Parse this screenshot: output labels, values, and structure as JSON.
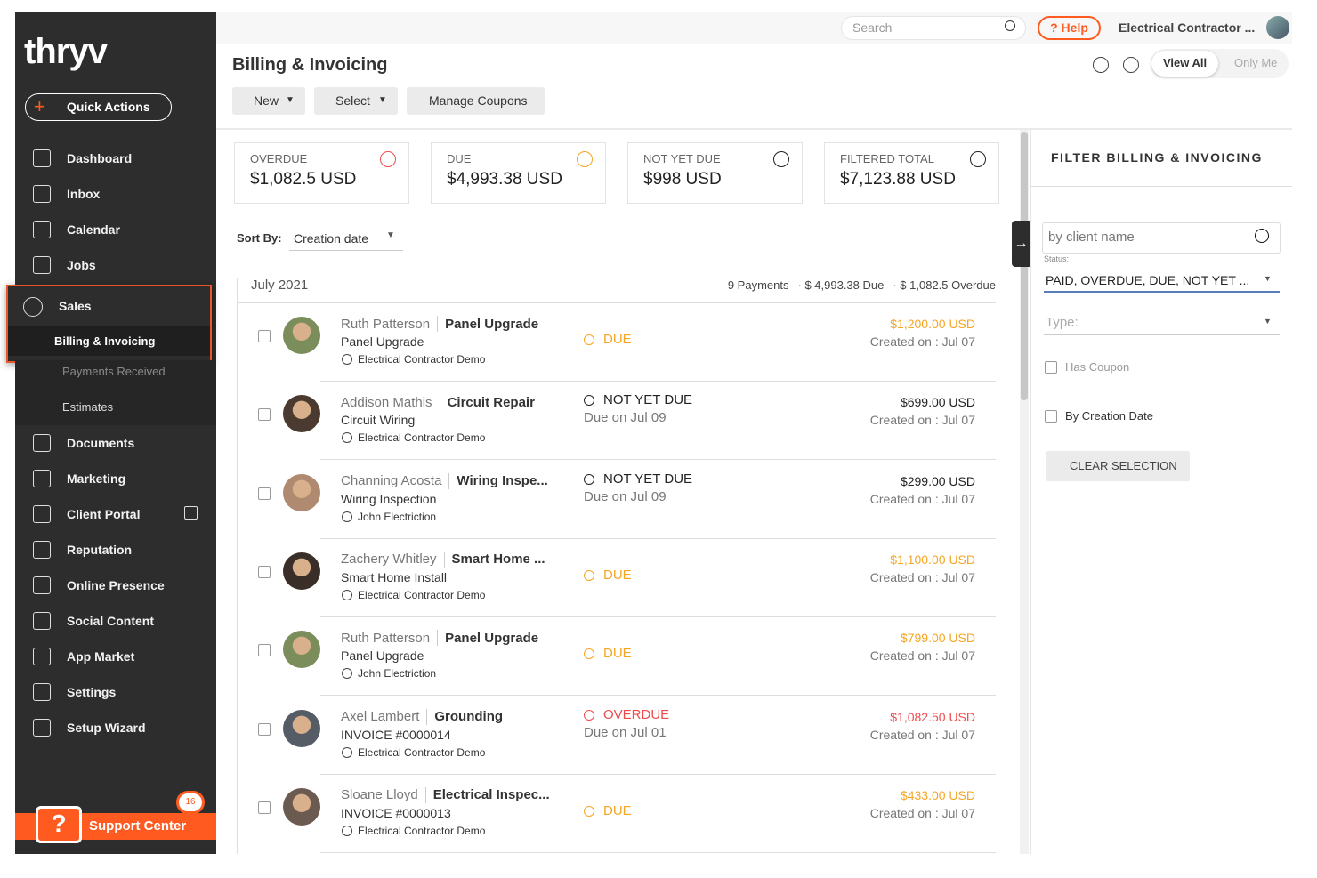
{
  "sidebar": {
    "brand": "thryv",
    "quick_actions": "Quick Actions",
    "nav_top": [
      "Dashboard",
      "Inbox",
      "Calendar",
      "Jobs"
    ],
    "sales": {
      "label": "Sales",
      "children": [
        "Billing & Invoicing",
        "Payments Received",
        "Estimates"
      ]
    },
    "nav_bottom": [
      "Documents",
      "Marketing",
      "Client Portal",
      "Reputation",
      "Online Presence",
      "Social Content",
      "App Market",
      "Settings",
      "Setup Wizard"
    ],
    "support": {
      "icon": "?",
      "badge": "16",
      "label": "Support Center"
    }
  },
  "topbar": {
    "search": "Search",
    "help": "? Help",
    "account": "Electrical Contractor ..."
  },
  "header": {
    "title": "Billing & Invoicing",
    "buttons": [
      "New",
      "Select",
      "Manage Coupons"
    ],
    "toggle": [
      "View All",
      "Only Me"
    ]
  },
  "summary": [
    {
      "label": "OVERDUE",
      "value": "$1,082.5 USD",
      "color": "#ef4b4b"
    },
    {
      "label": "DUE",
      "value": "$4,993.38 USD",
      "color": "#f5a623"
    },
    {
      "label": "NOT YET DUE",
      "value": "$998 USD",
      "color": "#222222"
    },
    {
      "label": "FILTERED TOTAL",
      "value": "$7,123.88 USD",
      "color": "#222222"
    }
  ],
  "sort": {
    "label": "Sort By:",
    "value": "Creation date"
  },
  "group": {
    "title": "July 2021",
    "payments": "9 Payments",
    "due": "· $ 4,993.38 Due",
    "overdue": "· $ 1,082.5 Overdue"
  },
  "rows": [
    {
      "client": "Ruth Patterson",
      "title": "Panel Upgrade",
      "subtitle": "Panel Upgrade",
      "owner": "Electrical Contractor Demo",
      "status": "DUE",
      "amount": "$1,200.00 USD",
      "created": "Created on : Jul 07",
      "color": "#f5a623"
    },
    {
      "client": "Addison Mathis",
      "title": "Circuit Repair",
      "subtitle": "Circuit Wiring",
      "owner": "Electrical Contractor Demo",
      "status": "NOT YET DUE",
      "due": "Due on Jul 09",
      "amount": "$699.00 USD",
      "created": "Created on : Jul 07",
      "color": "#222222"
    },
    {
      "client": "Channing Acosta",
      "title": "Wiring Inspe...",
      "subtitle": "Wiring Inspection",
      "owner": "John Electriction",
      "status": "NOT YET DUE",
      "due": "Due on Jul 09",
      "amount": "$299.00 USD",
      "created": "Created on : Jul 07",
      "color": "#222222"
    },
    {
      "client": "Zachery Whitley",
      "title": "Smart Home ...",
      "subtitle": "Smart Home Install",
      "owner": "Electrical Contractor Demo",
      "status": "DUE",
      "amount": "$1,100.00 USD",
      "created": "Created on : Jul 07",
      "color": "#f5a623"
    },
    {
      "client": "Ruth Patterson",
      "title": "Panel Upgrade",
      "subtitle": "Panel Upgrade",
      "owner": "John Electriction",
      "status": "DUE",
      "amount": "$799.00 USD",
      "created": "Created on : Jul 07",
      "color": "#f5a623"
    },
    {
      "client": "Axel Lambert",
      "title": "Grounding",
      "subtitle": "INVOICE #0000014",
      "owner": "Electrical Contractor Demo",
      "status": "OVERDUE",
      "due": "Due on Jul 01",
      "amount": "$1,082.50 USD",
      "created": "Created on : Jul 07",
      "color": "#ef4b4b"
    },
    {
      "client": "Sloane Lloyd",
      "title": "Electrical Inspec...",
      "subtitle": "INVOICE #0000013",
      "owner": "Electrical Contractor Demo",
      "status": "DUE",
      "amount": "$433.00 USD",
      "created": "Created on : Jul 07",
      "color": "#f5a623"
    }
  ],
  "filter": {
    "title": "FILTER BILLING & INVOICING",
    "search": "by client name",
    "status_label": "Status:",
    "status_value": "PAID, OVERDUE, DUE, NOT YET ...",
    "type_label": "Type:",
    "checkboxes": [
      "Has Coupon",
      "By Creation Date"
    ],
    "clear": "CLEAR SELECTION"
  }
}
